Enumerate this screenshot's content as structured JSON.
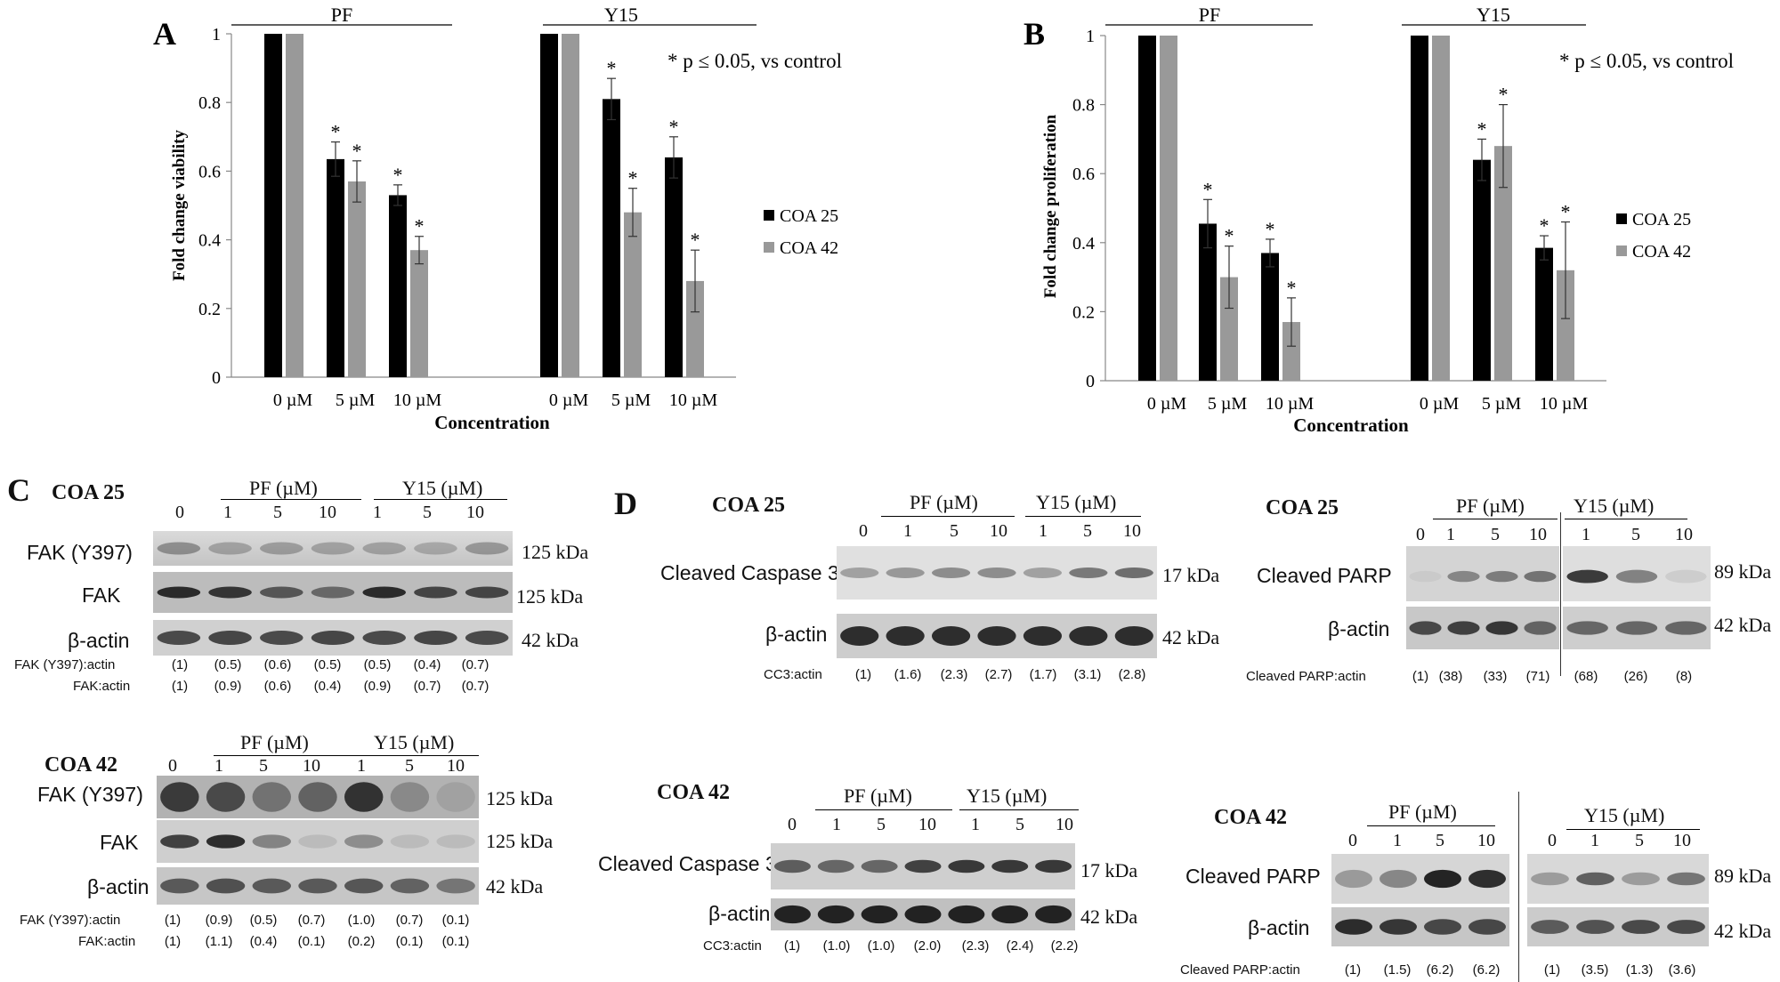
{
  "chart_data": [
    {
      "type": "bar",
      "panel": "A",
      "ylabel": "Fold change viability",
      "xlabel": "Concentration",
      "ylim": [
        0,
        1
      ],
      "yticks": [
        "0",
        "0.2",
        "0.4",
        "0.6",
        "0.8",
        "1"
      ],
      "groups": [
        "PF",
        "Y15"
      ],
      "categories": [
        "0 µM",
        "5 µM",
        "10 µM",
        "0 µM",
        "5 µM",
        "10 µM"
      ],
      "series": [
        {
          "name": "COA 25",
          "color": "#000000",
          "values": [
            1.0,
            0.635,
            0.53,
            1.0,
            0.81,
            0.64
          ],
          "errors": [
            0,
            0.05,
            0.03,
            0,
            0.06,
            0.06
          ]
        },
        {
          "name": "COA 42",
          "color": "#999999",
          "values": [
            1.0,
            0.57,
            0.37,
            1.0,
            0.48,
            0.28
          ],
          "errors": [
            0,
            0.06,
            0.04,
            0,
            0.07,
            0.09
          ]
        }
      ],
      "significance": [
        [
          false,
          true,
          true,
          false,
          true,
          true
        ],
        [
          false,
          true,
          true,
          false,
          true,
          true
        ]
      ],
      "annotation": "* p ≤ 0.05, vs control",
      "legend": "right"
    },
    {
      "type": "bar",
      "panel": "B",
      "ylabel": "Fold change proliferation",
      "xlabel": "Concentration",
      "ylim": [
        0,
        1
      ],
      "yticks": [
        "0",
        "0.2",
        "0.4",
        "0.6",
        "0.8",
        "1"
      ],
      "groups": [
        "PF",
        "Y15"
      ],
      "categories": [
        "0 µM",
        "5 µM",
        "10 µM",
        "0 µM",
        "5 µM",
        "10 µM"
      ],
      "series": [
        {
          "name": "COA 25",
          "color": "#000000",
          "values": [
            1.0,
            0.455,
            0.37,
            1.0,
            0.64,
            0.385
          ],
          "errors": [
            0,
            0.07,
            0.04,
            0,
            0.06,
            0.035
          ]
        },
        {
          "name": "COA 42",
          "color": "#999999",
          "values": [
            1.0,
            0.3,
            0.17,
            1.0,
            0.68,
            0.32
          ],
          "errors": [
            0,
            0.09,
            0.07,
            0,
            0.12,
            0.14
          ]
        }
      ],
      "significance": [
        [
          false,
          true,
          true,
          false,
          true,
          true
        ],
        [
          false,
          true,
          true,
          false,
          true,
          true
        ]
      ],
      "annotation": "* p ≤ 0.05, vs control",
      "legend": "right"
    }
  ],
  "blots": {
    "C": {
      "letter": "C",
      "coa25": {
        "title": "COA 25",
        "groups": [
          "PF (µM)",
          "Y15 (µM)"
        ],
        "lanes": [
          "0",
          "1",
          "5",
          "10",
          "1",
          "5",
          "10"
        ],
        "rows": [
          {
            "label": "FAK (Y397)",
            "kda": "125 kDa"
          },
          {
            "label": "FAK",
            "kda": "125 kDa"
          },
          {
            "label": "β-actin",
            "kda": "42 kDa"
          }
        ],
        "ratios": [
          {
            "label": "FAK (Y397):actin",
            "values": [
              "(1)",
              "(0.5)",
              "(0.6)",
              "(0.5)",
              "(0.5)",
              "(0.4)",
              "(0.7)"
            ]
          },
          {
            "label": "FAK:actin",
            "values": [
              "(1)",
              "(0.9)",
              "(0.6)",
              "(0.4)",
              "(0.9)",
              "(0.7)",
              "(0.7)"
            ]
          }
        ]
      },
      "coa42": {
        "title": "COA 42",
        "groups": [
          "PF (µM)",
          "Y15 (µM)"
        ],
        "lanes": [
          "0",
          "1",
          "5",
          "10",
          "1",
          "5",
          "10"
        ],
        "rows": [
          {
            "label": "FAK (Y397)",
            "kda": "125 kDa"
          },
          {
            "label": "FAK",
            "kda": "125 kDa"
          },
          {
            "label": "β-actin",
            "kda": "42 kDa"
          }
        ],
        "ratios": [
          {
            "label": "FAK (Y397):actin",
            "values": [
              "(1)",
              "(0.9)",
              "(0.5)",
              "(0.7)",
              "(1.0)",
              "(0.7)",
              "(0.1)"
            ]
          },
          {
            "label": "FAK:actin",
            "values": [
              "(1)",
              "(1.1)",
              "(0.4)",
              "(0.1)",
              "(0.2)",
              "(0.1)",
              "(0.1)"
            ]
          }
        ]
      }
    },
    "D": {
      "letter": "D",
      "cc3_25": {
        "title": "COA 25",
        "groups": [
          "PF (µM)",
          "Y15 (µM)"
        ],
        "lanes": [
          "0",
          "1",
          "5",
          "10",
          "1",
          "5",
          "10"
        ],
        "rows": [
          {
            "label": "Cleaved Caspase 3",
            "kda": "17 kDa"
          },
          {
            "label": "β-actin",
            "kda": "42 kDa"
          }
        ],
        "ratio": {
          "label": "CC3:actin",
          "values": [
            "(1)",
            "(1.6)",
            "(2.3)",
            "(2.7)",
            "(1.7)",
            "(3.1)",
            "(2.8)"
          ]
        }
      },
      "parp_25": {
        "title": "COA 25",
        "groups": [
          "PF (µM)",
          "Y15 (µM)"
        ],
        "lanes": [
          "0",
          "1",
          "5",
          "10",
          "1",
          "5",
          "10"
        ],
        "rows": [
          {
            "label": "Cleaved PARP",
            "kda": "89 kDa"
          },
          {
            "label": "β-actin",
            "kda": "42 kDa"
          }
        ],
        "ratio": {
          "label": "Cleaved PARP:actin",
          "values": [
            "(1)",
            "(38)",
            "(33)",
            "(71)",
            "(68)",
            "(26)",
            "(8)"
          ]
        }
      },
      "cc3_42": {
        "title": "COA 42",
        "groups": [
          "PF (µM)",
          "Y15 (µM)"
        ],
        "lanes": [
          "0",
          "1",
          "5",
          "10",
          "1",
          "5",
          "10"
        ],
        "rows": [
          {
            "label": "Cleaved Caspase 3",
            "kda": "17 kDa"
          },
          {
            "label": "β-actin",
            "kda": "42 kDa"
          }
        ],
        "ratio": {
          "label": "CC3:actin",
          "values": [
            "(1)",
            "(1.0)",
            "(1.0)",
            "(2.0)",
            "(2.3)",
            "(2.4)",
            "(2.2)"
          ]
        }
      },
      "parp_42": {
        "title": "COA 42",
        "groups": [
          "PF (µM)",
          "Y15 (µM)"
        ],
        "lanes": [
          "0",
          "1",
          "5",
          "10",
          "0",
          "1",
          "5",
          "10"
        ],
        "rows": [
          {
            "label": "Cleaved PARP",
            "kda": "89 kDa"
          },
          {
            "label": "β-actin",
            "kda": "42 kDa"
          }
        ],
        "ratio": {
          "label": "Cleaved PARP:actin",
          "values": [
            "(1)",
            "(1.5)",
            "(6.2)",
            "(6.2)",
            "(1)",
            "(3.5)",
            "(1.3)",
            "(3.6)"
          ]
        }
      }
    }
  }
}
